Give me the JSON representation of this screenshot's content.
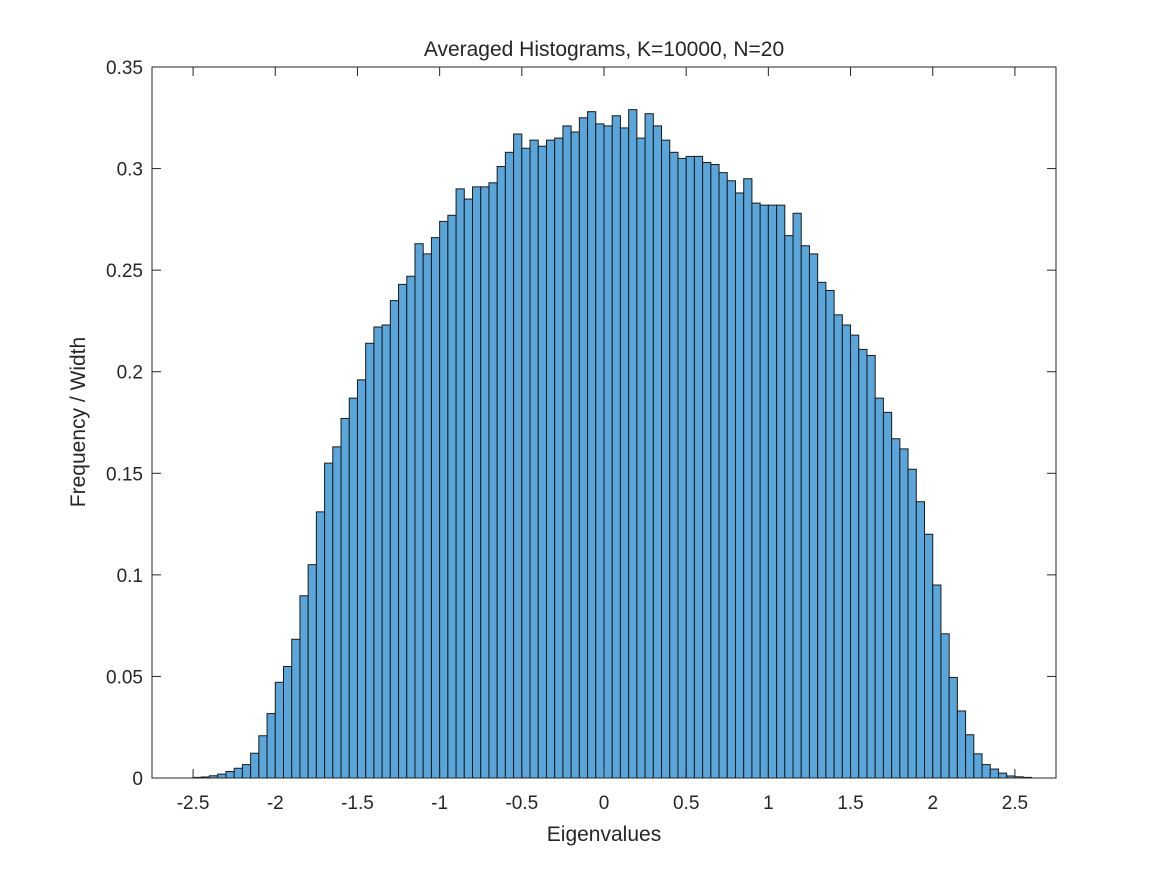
{
  "chart_data": {
    "type": "bar",
    "title": "Averaged Histograms, K=10000, N=20",
    "xlabel": "Eigenvalues",
    "ylabel": "Frequency / Width",
    "xlim": [
      -2.75,
      2.75
    ],
    "ylim": [
      0,
      0.35
    ],
    "xticks": [
      "-2.5",
      "-2",
      "-1.5",
      "-1",
      "-0.5",
      "0",
      "0.5",
      "1",
      "1.5",
      "2",
      "2.5"
    ],
    "yticks": [
      "0",
      "0.05",
      "0.1",
      "0.15",
      "0.2",
      "0.25",
      "0.3",
      "0.35"
    ],
    "xtick_values": [
      -2.5,
      -2,
      -1.5,
      -1,
      -0.5,
      0,
      0.5,
      1,
      1.5,
      2,
      2.5
    ],
    "ytick_values": [
      0,
      0.05,
      0.1,
      0.15,
      0.2,
      0.25,
      0.3,
      0.35
    ],
    "grid": false,
    "legend": "none",
    "bar_color": "#5aa5da",
    "edge_color": "#1a1a1a",
    "bin_start": -2.5,
    "bin_width": 0.05,
    "values": [
      0.0003,
      0.0005,
      0.0011,
      0.0019,
      0.0032,
      0.0048,
      0.0066,
      0.0122,
      0.0208,
      0.0317,
      0.0471,
      0.0549,
      0.0683,
      0.0897,
      0.105,
      0.131,
      0.155,
      0.163,
      0.177,
      0.187,
      0.196,
      0.214,
      0.222,
      0.223,
      0.235,
      0.243,
      0.247,
      0.263,
      0.258,
      0.266,
      0.274,
      0.277,
      0.29,
      0.285,
      0.291,
      0.291,
      0.293,
      0.301,
      0.308,
      0.317,
      0.31,
      0.314,
      0.311,
      0.314,
      0.315,
      0.321,
      0.318,
      0.325,
      0.328,
      0.322,
      0.321,
      0.326,
      0.32,
      0.329,
      0.315,
      0.327,
      0.321,
      0.314,
      0.308,
      0.305,
      0.306,
      0.306,
      0.303,
      0.302,
      0.298,
      0.294,
      0.288,
      0.295,
      0.283,
      0.282,
      0.282,
      0.282,
      0.267,
      0.278,
      0.262,
      0.258,
      0.244,
      0.24,
      0.228,
      0.223,
      0.218,
      0.211,
      0.208,
      0.187,
      0.18,
      0.167,
      0.162,
      0.152,
      0.136,
      0.12,
      0.095,
      0.071,
      0.0495,
      0.033,
      0.0213,
      0.0119,
      0.0066,
      0.0044,
      0.0024,
      0.001,
      0.0006,
      0.0003
    ]
  }
}
